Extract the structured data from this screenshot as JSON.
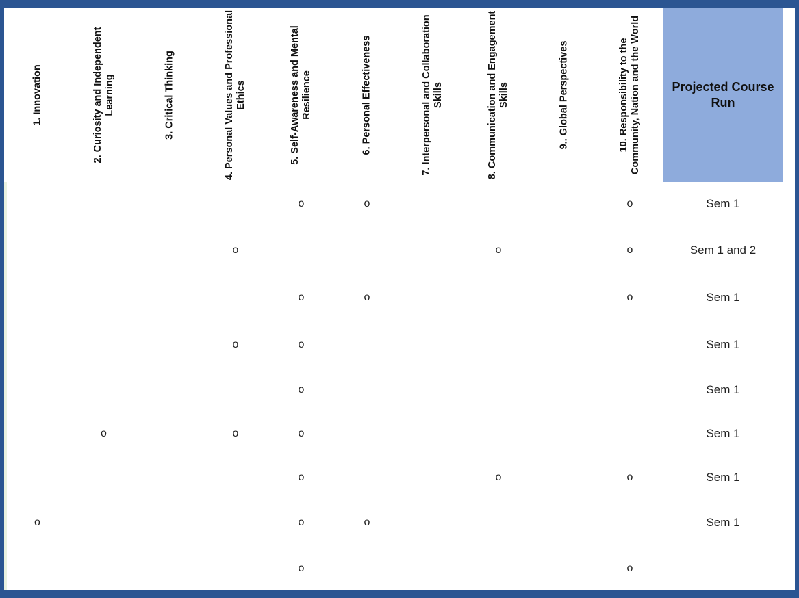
{
  "headers": [
    "1. Innovation",
    "2. Curiosity and Independent Learning",
    "3. Critical Thinking",
    "4. Personal Values and Professional Ethics",
    "5. Self-Awareness and Mental Resilience",
    "6. Personal Effectiveness",
    "7. Interpersonal and Collaboration Skills",
    "8. Communication and Engagement Skills",
    "9.. Global Perspectives",
    "10. Responsibility to the Community, Nation and the World"
  ],
  "projected_header": "Projected Course Run",
  "rows": [
    {
      "marks": [
        "",
        "",
        "",
        "",
        "o",
        "o",
        "",
        "",
        "",
        "o"
      ],
      "run": "Sem 1"
    },
    {
      "marks": [
        "",
        "",
        "",
        "o",
        "",
        "",
        "",
        "o",
        "",
        "o"
      ],
      "run": "Sem 1 and 2"
    },
    {
      "marks": [
        "",
        "",
        "",
        "",
        "o",
        "o",
        "",
        "",
        "",
        "o"
      ],
      "run": "Sem 1"
    },
    {
      "marks": [
        "",
        "",
        "",
        "o",
        "o",
        "",
        "",
        "",
        "",
        ""
      ],
      "run": "Sem 1"
    },
    {
      "marks": [
        "",
        "",
        "",
        "",
        "o",
        "",
        "",
        "",
        "",
        ""
      ],
      "run": "Sem 1"
    },
    {
      "marks": [
        "",
        "o",
        "",
        "o",
        "o",
        "",
        "",
        "",
        "",
        ""
      ],
      "run": "Sem 1"
    },
    {
      "marks": [
        "",
        "",
        "",
        "",
        "o",
        "",
        "",
        "o",
        "",
        "o"
      ],
      "run": "Sem 1"
    },
    {
      "marks": [
        "o",
        "",
        "",
        "",
        "o",
        "o",
        "",
        "",
        "",
        ""
      ],
      "run": "Sem 1"
    },
    {
      "marks": [
        "",
        "",
        "",
        "",
        "o",
        "",
        "",
        "",
        "",
        "o"
      ],
      "run": ""
    }
  ]
}
